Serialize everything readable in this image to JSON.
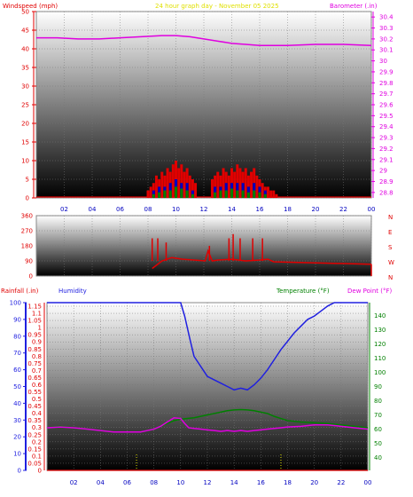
{
  "header": {
    "wind_title": "Windspeed (mph)",
    "graph_title": "24 hour graph day - November 05 2025",
    "baro_title": "Barometer (.in)"
  },
  "colors": {
    "wind_label": "#e00000",
    "title": "#e0e000",
    "baro": "#e000e0",
    "rain": "#e00000",
    "humidity": "#2020e0",
    "temperature": "#008000",
    "dew_point": "#e000e0",
    "panel_top": "#ffffff",
    "panel_bottom": "#000000"
  },
  "chart_data": [
    {
      "type": "line",
      "name": "wind-barometer",
      "title": "24 hour graph day - November 05 2025",
      "x_ticks": [
        "02",
        "04",
        "06",
        "08",
        "10",
        "12",
        "14",
        "16",
        "18",
        "20",
        "22",
        "00"
      ],
      "xlim": [
        0,
        24
      ],
      "ylabel": "Windspeed (mph)",
      "ylim": [
        0,
        50
      ],
      "y_ticks": [
        0,
        5,
        10,
        15,
        20,
        25,
        30,
        35,
        40,
        45,
        50
      ],
      "y2label": "Barometer (.in)",
      "y2lim": [
        28.75,
        30.45
      ],
      "y2_ticks": [
        "28.8",
        "28.9",
        "29",
        "29.1",
        "29.2",
        "29.3",
        "29.4",
        "29.5",
        "29.6",
        "29.7",
        "29.8",
        "29.9",
        "30",
        "30.1",
        "30.2",
        "30.3",
        "30.4"
      ],
      "series": [
        {
          "key": "barometer",
          "axis": "y2",
          "color": "#e000e0",
          "x": [
            0,
            1.5,
            3,
            4.5,
            6,
            7.5,
            9,
            10,
            11,
            12,
            13,
            14,
            15,
            16,
            17,
            18,
            20,
            22,
            24
          ],
          "y": [
            30.21,
            30.21,
            30.2,
            30.2,
            30.21,
            30.22,
            30.23,
            30.23,
            30.22,
            30.2,
            30.18,
            30.16,
            30.15,
            30.14,
            30.14,
            30.14,
            30.15,
            30.15,
            30.14
          ]
        },
        {
          "key": "wind_gust",
          "axis": "y",
          "color": "#e00000",
          "style": "bars",
          "x": [
            8.0,
            8.2,
            8.4,
            8.6,
            8.8,
            9.0,
            9.2,
            9.4,
            9.6,
            9.8,
            10.0,
            10.2,
            10.4,
            10.6,
            10.8,
            11.0,
            11.2,
            11.4,
            12.6,
            12.8,
            13.0,
            13.2,
            13.4,
            13.6,
            13.8,
            14.0,
            14.2,
            14.4,
            14.6,
            14.8,
            15.0,
            15.2,
            15.4,
            15.6,
            15.8,
            16.0,
            16.2,
            16.4,
            16.6,
            16.8,
            17.0,
            17.2
          ],
          "y": [
            2,
            3,
            4,
            6,
            5,
            7,
            6,
            8,
            7,
            9,
            10,
            8,
            9,
            7,
            8,
            6,
            5,
            4,
            5,
            6,
            7,
            6,
            8,
            7,
            6,
            8,
            7,
            9,
            8,
            7,
            8,
            6,
            7,
            8,
            6,
            5,
            4,
            3,
            3,
            2,
            2,
            1
          ]
        },
        {
          "key": "wind_speed",
          "axis": "y",
          "color": "#0000c0",
          "style": "bars",
          "x": [
            8.4,
            8.8,
            9.2,
            9.6,
            10.0,
            10.4,
            10.8,
            11.2,
            12.8,
            13.2,
            13.6,
            14.0,
            14.4,
            14.8,
            15.2,
            15.6,
            16.0,
            16.4
          ],
          "y": [
            2,
            3,
            3,
            4,
            5,
            4,
            4,
            2,
            3,
            3,
            4,
            4,
            4,
            4,
            3,
            4,
            3,
            2
          ]
        },
        {
          "key": "wind_avg",
          "axis": "y",
          "color": "#008000",
          "style": "bars",
          "x": [
            8.4,
            8.8,
            9.2,
            9.6,
            10.0,
            10.4,
            10.8,
            11.2,
            12.8,
            13.2,
            13.6,
            14.0,
            14.4,
            14.8,
            15.2,
            15.6,
            16.0,
            16.4
          ],
          "y": [
            1,
            1.5,
            2,
            2,
            3,
            2.5,
            2,
            1,
            1.5,
            2,
            2,
            2.5,
            2,
            2,
            1.5,
            2,
            1.5,
            1
          ]
        }
      ]
    },
    {
      "type": "line",
      "name": "wind-direction",
      "x_ticks": [
        "02",
        "04",
        "06",
        "08",
        "10",
        "12",
        "14",
        "16",
        "18",
        "20",
        "22",
        "00"
      ],
      "xlim": [
        0,
        24
      ],
      "ylim": [
        0,
        360
      ],
      "y_ticks": [
        0,
        90,
        180,
        270,
        360
      ],
      "y_tick_labels": [
        "0",
        "90",
        "180",
        "270",
        "360"
      ],
      "compass": [
        "N",
        "W",
        "S",
        "E",
        "N"
      ],
      "series": [
        {
          "key": "direction",
          "color": "#e00000",
          "x": [
            8.3,
            9.0,
            9.7,
            10.5,
            11.3,
            12.1,
            12.3,
            12.6,
            13.0,
            14.0,
            15.0,
            16.0,
            16.6,
            17.0,
            24.0
          ],
          "y": [
            45,
            90,
            110,
            100,
            95,
            90,
            150,
            90,
            95,
            100,
            90,
            95,
            100,
            85,
            70
          ]
        },
        {
          "key": "direction_spikes",
          "color": "#e00000",
          "style": "spikes",
          "x": [
            8.3,
            8.7,
            9.3,
            12.4,
            13.8,
            14.1,
            14.6,
            15.5,
            16.2
          ],
          "y": [
            225,
            225,
            200,
            180,
            225,
            250,
            225,
            225,
            225
          ]
        }
      ]
    },
    {
      "type": "line",
      "name": "rain-humidity-temperature",
      "x_ticks": [
        "02",
        "04",
        "06",
        "08",
        "10",
        "12",
        "14",
        "16",
        "18",
        "20",
        "22",
        "00"
      ],
      "xlim": [
        0,
        24
      ],
      "rain_label": "Rainfall (.in)",
      "humidity_label": "Humidity",
      "temperature_label": "Temperature (°F)",
      "dew_label": "Dew Point (°F)",
      "humidity_ticks": [
        0,
        10,
        20,
        30,
        40,
        50,
        60,
        70,
        80,
        90,
        100
      ],
      "rain_ticks": [
        "0",
        "0.05",
        "0.1",
        "0.15",
        "0.2",
        "0.25",
        "0.3",
        "0.35",
        "0.4",
        "0.45",
        "0.5",
        "0.55",
        "0.6",
        "0.65",
        "0.7",
        "0.75",
        "0.8",
        "0.85",
        "0.9",
        "0.95",
        "1",
        "1.05",
        "1.1",
        "1.15"
      ],
      "ylim_rain": [
        0,
        1.175
      ],
      "temp_ticks": [
        40,
        50,
        60,
        70,
        80,
        90,
        100,
        110,
        120,
        130,
        140
      ],
      "ylim_temp": [
        31,
        149
      ],
      "series": [
        {
          "key": "humidity",
          "axis": "humidity",
          "color": "#2020e0",
          "x": [
            0,
            10.0,
            10.3,
            10.7,
            11.0,
            11.5,
            12.0,
            12.5,
            13.0,
            13.5,
            14.0,
            14.5,
            15.0,
            15.5,
            16.0,
            16.5,
            17.0,
            17.5,
            18.0,
            18.5,
            19.0,
            19.5,
            20.0,
            20.5,
            21.0,
            21.5,
            22.0,
            24.0
          ],
          "y": [
            100,
            100,
            92,
            78,
            68,
            62,
            56,
            54,
            52,
            50,
            48,
            49,
            48,
            51,
            55,
            60,
            66,
            72,
            77,
            82,
            86,
            90,
            92,
            95,
            98,
            100,
            100,
            100
          ]
        },
        {
          "key": "temperature",
          "axis": "temp",
          "color": "#008000",
          "x": [
            0,
            1.0,
            2.0,
            3.0,
            4.0,
            5.0,
            6.0,
            7.0,
            8.0,
            8.5,
            9.0,
            9.5,
            10.0,
            10.5,
            11.0,
            11.5,
            12.0,
            12.5,
            13.0,
            13.5,
            14.0,
            14.5,
            15.0,
            15.5,
            16.0,
            16.5,
            17.0,
            17.5,
            18.0,
            19.0,
            20.0,
            21.0,
            22.0,
            23.0,
            24.0
          ],
          "y": [
            61,
            62,
            61,
            60,
            59,
            58,
            58,
            58,
            60,
            62,
            64,
            66,
            67,
            67.5,
            68,
            69,
            70,
            71,
            72,
            73,
            73.5,
            73.8,
            73.5,
            73,
            72,
            71,
            69,
            67.5,
            66,
            65,
            64.5,
            64,
            63,
            62,
            61
          ]
        },
        {
          "key": "dew_point",
          "axis": "temp",
          "color": "#e000e0",
          "x": [
            0,
            1.0,
            2.0,
            3.0,
            4.0,
            5.0,
            6.0,
            7.0,
            8.0,
            8.5,
            9.0,
            9.5,
            10.0,
            10.3,
            10.6,
            11.0,
            11.5,
            12.0,
            12.5,
            13.0,
            13.5,
            14.0,
            14.5,
            15.0,
            15.5,
            16.0,
            16.5,
            17.0,
            17.5,
            18.0,
            19.0,
            20.0,
            21.0,
            22.0,
            23.0,
            24.0
          ],
          "y": [
            61,
            61.5,
            61,
            60,
            59,
            58,
            58,
            58,
            60,
            62,
            65,
            68,
            67.5,
            64,
            61,
            60.5,
            60,
            59.5,
            59,
            58.5,
            59,
            58.5,
            59,
            58.5,
            59,
            59.5,
            60,
            60.5,
            61,
            61.5,
            62,
            63,
            63,
            62,
            61,
            60
          ]
        },
        {
          "key": "rain",
          "axis": "rain",
          "color": "#e00000",
          "x": [
            0,
            24
          ],
          "y": [
            0,
            0
          ]
        }
      ],
      "markers": {
        "color": "#e0e000",
        "x": [
          6.7,
          17.5
        ]
      }
    }
  ]
}
